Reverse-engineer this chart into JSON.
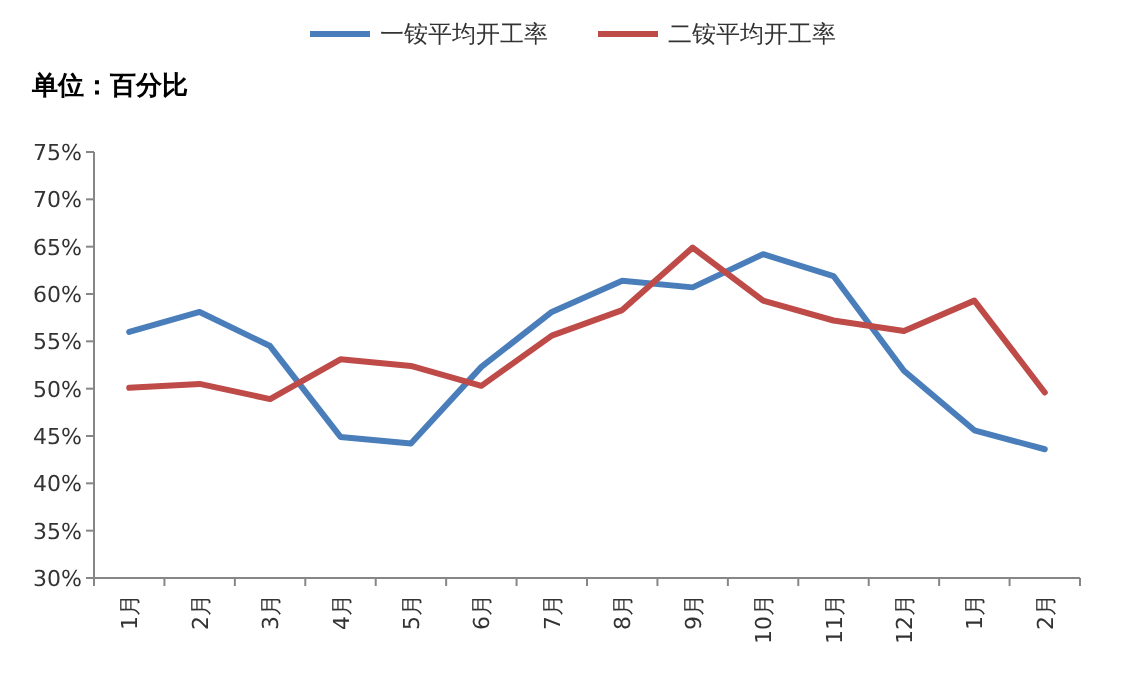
{
  "chart_data": {
    "type": "line",
    "categories": [
      "1月",
      "2月",
      "3月",
      "4月",
      "5月",
      "6月",
      "7月",
      "8月",
      "9月",
      "10月",
      "11月",
      "12月",
      "1月",
      "2月"
    ],
    "series": [
      {
        "name": "一铵平均开工率",
        "color": "#4a7ebb",
        "values": [
          56,
          58.1,
          54.5,
          44.9,
          44.2,
          52.3,
          58.1,
          61.4,
          60.7,
          64.2,
          61.9,
          51.9,
          45.6,
          43.6
        ]
      },
      {
        "name": "二铵平均开工率",
        "color": "#be4b48",
        "values": [
          50.1,
          50.5,
          48.9,
          53.1,
          52.4,
          50.3,
          55.6,
          58.3,
          64.9,
          59.3,
          57.2,
          56.1,
          59.3,
          49.6
        ]
      }
    ],
    "ylim": [
      30,
      75
    ],
    "yticks": [
      {
        "value": 30,
        "label": "30%"
      },
      {
        "value": 35,
        "label": "35%"
      },
      {
        "value": 40,
        "label": "40%"
      },
      {
        "value": 45,
        "label": "45%"
      },
      {
        "value": 50,
        "label": "50%"
      },
      {
        "value": 55,
        "label": "55%"
      },
      {
        "value": 60,
        "label": "60%"
      },
      {
        "value": 65,
        "label": "65%"
      },
      {
        "value": 70,
        "label": "70%"
      },
      {
        "value": 75,
        "label": "75%"
      }
    ],
    "legend": "top",
    "annotations": [
      "单位：百分比"
    ]
  }
}
